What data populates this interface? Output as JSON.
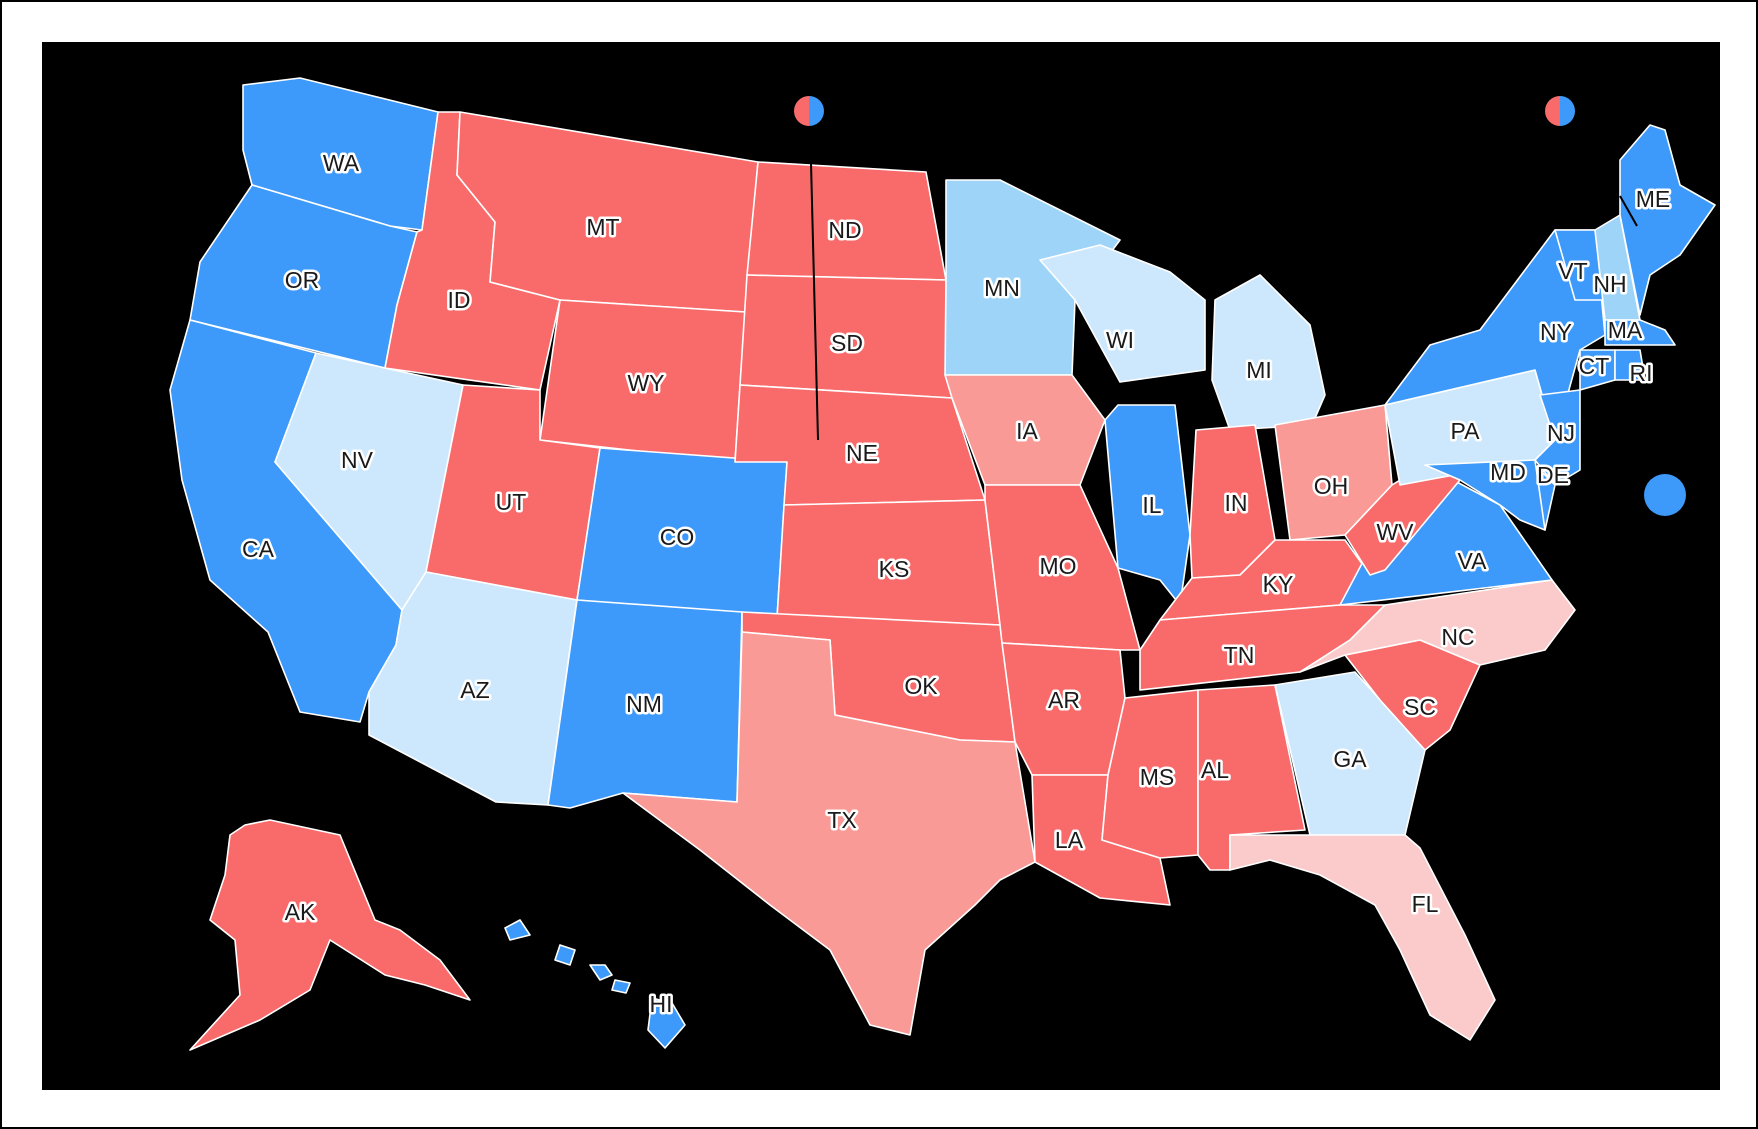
{
  "colors": {
    "background": "#000000",
    "border": "#ffffff",
    "solid_d": "#3d99fa",
    "likely_d": "#9fd4f9",
    "lean_d": "#cde8fc",
    "solid_r": "#f96b6b",
    "likely_r": "#f99a96",
    "lean_r": "#fbcaca"
  },
  "split_markers": [
    {
      "id": "ne-split",
      "icon": "half-red-half-blue-circle-icon"
    },
    {
      "id": "me-split",
      "icon": "half-red-half-blue-circle-icon"
    }
  ],
  "single_marker": {
    "id": "dc-marker",
    "icon": "blue-circle-icon",
    "rating": "solid_d"
  },
  "states": [
    {
      "abbr": "WA",
      "rating": "solid_d"
    },
    {
      "abbr": "OR",
      "rating": "solid_d"
    },
    {
      "abbr": "CA",
      "rating": "solid_d"
    },
    {
      "abbr": "NV",
      "rating": "lean_d"
    },
    {
      "abbr": "ID",
      "rating": "solid_r"
    },
    {
      "abbr": "MT",
      "rating": "solid_r"
    },
    {
      "abbr": "WY",
      "rating": "solid_r"
    },
    {
      "abbr": "UT",
      "rating": "solid_r"
    },
    {
      "abbr": "AZ",
      "rating": "lean_d"
    },
    {
      "abbr": "CO",
      "rating": "solid_d"
    },
    {
      "abbr": "NM",
      "rating": "solid_d"
    },
    {
      "abbr": "ND",
      "rating": "solid_r"
    },
    {
      "abbr": "SD",
      "rating": "solid_r"
    },
    {
      "abbr": "NE",
      "rating": "solid_r"
    },
    {
      "abbr": "KS",
      "rating": "solid_r"
    },
    {
      "abbr": "OK",
      "rating": "solid_r"
    },
    {
      "abbr": "TX",
      "rating": "likely_r"
    },
    {
      "abbr": "MN",
      "rating": "likely_d"
    },
    {
      "abbr": "IA",
      "rating": "likely_r"
    },
    {
      "abbr": "MO",
      "rating": "solid_r"
    },
    {
      "abbr": "AR",
      "rating": "solid_r"
    },
    {
      "abbr": "LA",
      "rating": "solid_r"
    },
    {
      "abbr": "WI",
      "rating": "lean_d"
    },
    {
      "abbr": "IL",
      "rating": "solid_d"
    },
    {
      "abbr": "MI",
      "rating": "lean_d"
    },
    {
      "abbr": "IN",
      "rating": "solid_r"
    },
    {
      "abbr": "OH",
      "rating": "likely_r"
    },
    {
      "abbr": "KY",
      "rating": "solid_r"
    },
    {
      "abbr": "TN",
      "rating": "solid_r"
    },
    {
      "abbr": "MS",
      "rating": "solid_r"
    },
    {
      "abbr": "AL",
      "rating": "solid_r"
    },
    {
      "abbr": "GA",
      "rating": "lean_d"
    },
    {
      "abbr": "FL",
      "rating": "lean_r"
    },
    {
      "abbr": "SC",
      "rating": "solid_r"
    },
    {
      "abbr": "NC",
      "rating": "lean_r"
    },
    {
      "abbr": "VA",
      "rating": "solid_d"
    },
    {
      "abbr": "WV",
      "rating": "solid_r"
    },
    {
      "abbr": "PA",
      "rating": "lean_d"
    },
    {
      "abbr": "NY",
      "rating": "solid_d"
    },
    {
      "abbr": "VT",
      "rating": "solid_d"
    },
    {
      "abbr": "NH",
      "rating": "likely_d"
    },
    {
      "abbr": "ME",
      "rating": "solid_d"
    },
    {
      "abbr": "MA",
      "rating": "solid_d"
    },
    {
      "abbr": "CT",
      "rating": "solid_d"
    },
    {
      "abbr": "RI",
      "rating": "solid_d"
    },
    {
      "abbr": "NJ",
      "rating": "solid_d"
    },
    {
      "abbr": "DE",
      "rating": "solid_d"
    },
    {
      "abbr": "MD",
      "rating": "solid_d"
    },
    {
      "abbr": "AK",
      "rating": "solid_r"
    },
    {
      "abbr": "HI",
      "rating": "solid_d"
    }
  ]
}
